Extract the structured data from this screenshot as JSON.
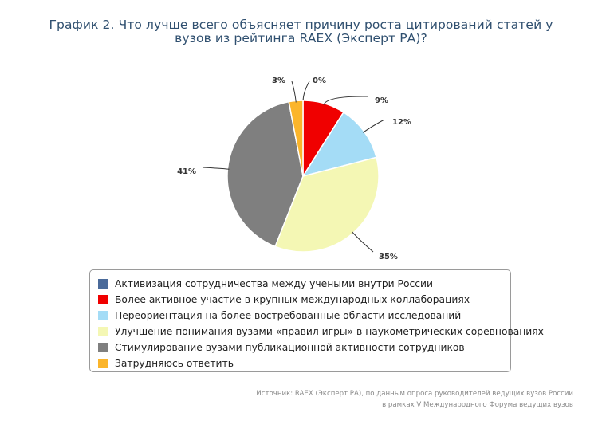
{
  "chart_data": {
    "type": "pie",
    "title_lines": [
      "График 2. Что лучше всего объясняет причину роста цитирований статей у",
      "вузов из рейтинга RAEX (Эксперт РА)?"
    ],
    "slices": [
      {
        "name": "Активизация сотрудничества между учеными внутри России",
        "value": 0,
        "label": "0%",
        "color": "#4a6a9a"
      },
      {
        "name": "Более активное участие в крупных международных коллаборациях",
        "value": 9,
        "label": "9%",
        "color": "#f00000"
      },
      {
        "name": "Переориентация на более востребованные области исследований",
        "value": 12,
        "label": "12%",
        "color": "#a4dcf6"
      },
      {
        "name": "Улучшение понимания вузами «правил игры» в наукометрических соревнованиях",
        "value": 35,
        "label": "35%",
        "color": "#f4f7b4"
      },
      {
        "name": "Стимулирование вузами публикационной активности сотрудников",
        "value": 41,
        "label": "41%",
        "color": "#7f7f7f"
      },
      {
        "name": "Затрудняюсь ответить",
        "value": 3,
        "label": "3%",
        "color": "#fbb52b"
      }
    ],
    "legend_position": "bottom"
  },
  "source": {
    "lines": [
      "Источник: RAEX (Эксперт РА), по данным опроса руководителей ведущих вузов России",
      "в рамках V Международного Форума ведущих вузов"
    ]
  }
}
